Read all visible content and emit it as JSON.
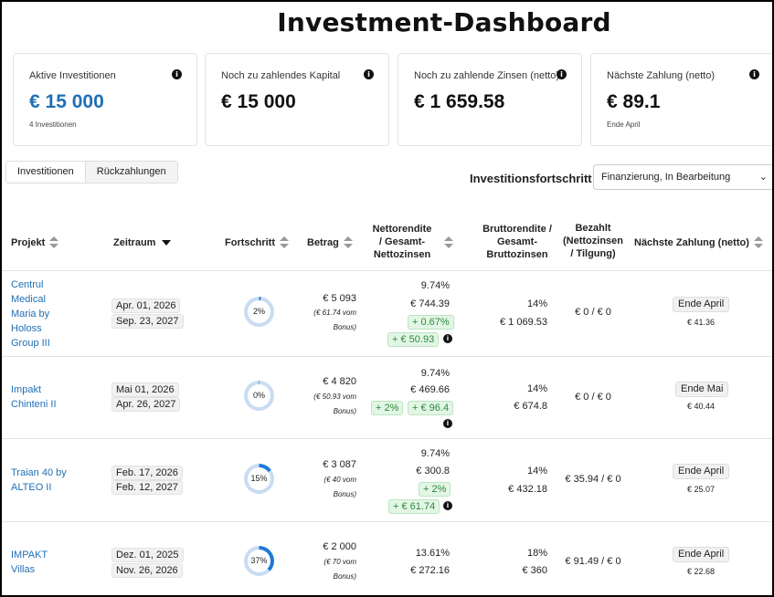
{
  "title": "Investment-Dashboard",
  "cards": [
    {
      "label": "Aktive Investitionen",
      "value": "€ 15 000",
      "sub": "4 Investitionen"
    },
    {
      "label": "Noch zu zahlendes Kapital",
      "value": "€ 15 000",
      "sub": ""
    },
    {
      "label": "Noch zu zahlende Zinsen (netto)",
      "value": "€ 1 659.58",
      "sub": ""
    },
    {
      "label": "Nächste Zahlung (netto)",
      "value": "€ 89.1",
      "sub": "Ende April"
    }
  ],
  "info_glyph": "i",
  "tabs": [
    "Investitionen",
    "Rückzahlungen"
  ],
  "filter": {
    "label": "Investitionsfortschritt",
    "selected": "Finanzierung, In Bearbeitung"
  },
  "columns": {
    "projekt": "Projekt",
    "zeitraum": "Zeitraum",
    "fortschritt": "Fortschritt",
    "betrag": "Betrag",
    "netto_1": "Nettorendite",
    "netto_2": "/ Gesamt-",
    "netto_3": "Nettozinsen",
    "brutto_1": "Bruttorendite /",
    "brutto_2": "Gesamt-",
    "brutto_3": "Bruttozinsen",
    "bezahlt_1": "Bezahlt",
    "bezahlt_2": "(Nettozinsen",
    "bezahlt_3": "/ Tilgung)",
    "naechste": "Nächste Zahlung (netto)"
  },
  "rows": [
    {
      "name_lines": [
        "Centrul",
        "Medical",
        "Maria by",
        "Holoss",
        "Group III"
      ],
      "start": "Apr. 01, 2026",
      "end": "Sep. 23, 2027",
      "progress": "2%",
      "progress_value": 2,
      "amount": "€ 5 093",
      "bonus_1": "(€ 61.74 vom",
      "bonus_2": "Bonus)",
      "net_rate": "9.74%",
      "net_total": "€ 744.39",
      "green_1": "+ 0.67%",
      "green_2": "+ € 50.93",
      "gross_rate": "14%",
      "gross_total": "€ 1 069.53",
      "paid": "€ 0 / € 0",
      "next_label": "Ende April",
      "next_amount": "€ 41.36"
    },
    {
      "name_lines": [
        "Impakt",
        "Chinteni II"
      ],
      "start": "Mai 01, 2026",
      "end": "Apr. 26, 2027",
      "progress": "0%",
      "progress_value": 0,
      "amount": "€ 4 820",
      "bonus_1": "(€ 50.93 vom",
      "bonus_2": "Bonus)",
      "net_rate": "9.74%",
      "net_total": "€ 469.66",
      "green_1": "+ 2%",
      "green_2": "+ € 96.4",
      "gross_rate": "14%",
      "gross_total": "€ 674.8",
      "paid": "€ 0 / € 0",
      "next_label": "Ende Mai",
      "next_amount": "€ 40.44"
    },
    {
      "name_lines": [
        "Traian 40 by",
        "ALTEO II"
      ],
      "start": "Feb. 17, 2026",
      "end": "Feb. 12, 2027",
      "progress": "15%",
      "progress_value": 15,
      "amount": "€ 3 087",
      "bonus_1": "(€ 40 vom",
      "bonus_2": "Bonus)",
      "net_rate": "9.74%",
      "net_total": "€ 300.8",
      "green_1": "+ 2%",
      "green_2": "+ € 61.74",
      "gross_rate": "14%",
      "gross_total": "€ 432.18",
      "paid": "€ 35.94 / € 0",
      "next_label": "Ende April",
      "next_amount": "€ 25.07"
    },
    {
      "name_lines": [
        "IMPAKT",
        "Villas"
      ],
      "start": "Dez. 01, 2025",
      "end": "Nov. 26, 2026",
      "progress": "37%",
      "progress_value": 37,
      "amount": "€ 2 000",
      "bonus_1": "(€ 70 vom",
      "bonus_2": "Bonus)",
      "net_rate": "13.61%",
      "net_total": "€ 272.16",
      "gross_rate": "18%",
      "gross_total": "€ 360",
      "paid": "€ 91.49 / € 0",
      "next_label": "Ende April",
      "next_amount": "€ 22.68"
    }
  ],
  "colors": {
    "accent": "#1f6fb5",
    "ring_track": "#c9dcf2",
    "ring_fill": "#1f7ad6",
    "green_bg": "#e3f6e6",
    "green_text": "#2a8a3a"
  }
}
